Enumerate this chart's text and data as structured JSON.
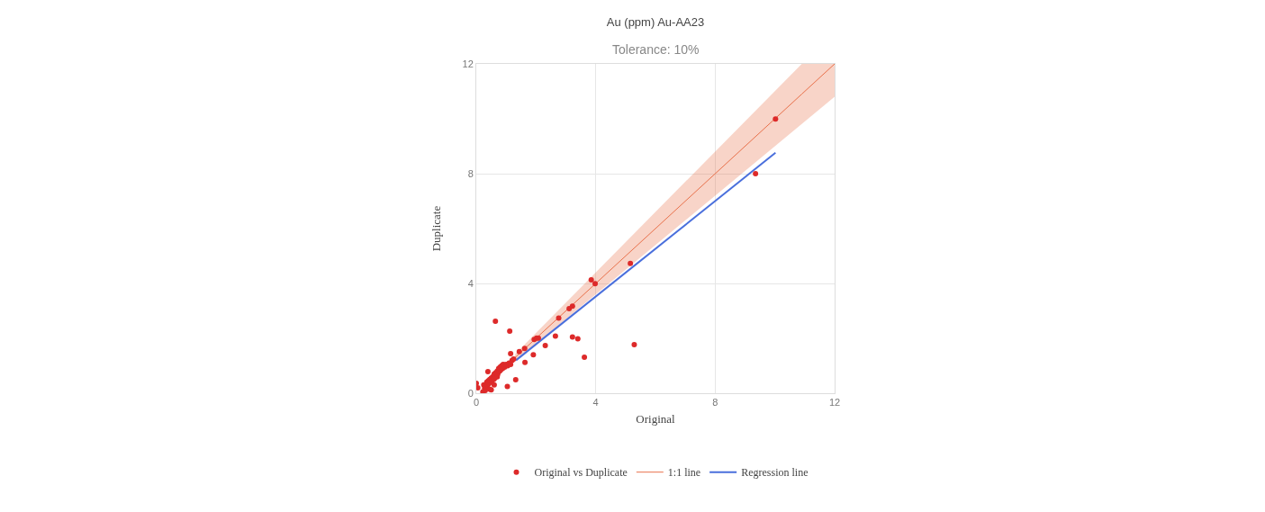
{
  "chart_data": {
    "type": "scatter",
    "title": "Au (ppm) Au-AA23",
    "subtitle": "Tolerance: 10%",
    "xlabel": "Original",
    "ylabel": "Duplicate",
    "xlim": [
      0,
      12
    ],
    "ylim": [
      0,
      12
    ],
    "xticks": [
      0,
      4,
      8,
      12
    ],
    "yticks": [
      0,
      4,
      8,
      12
    ],
    "grid": true,
    "legend": "bottom",
    "series": [
      {
        "name": "1:1 line",
        "type": "line",
        "marker": "none",
        "color": "#e8704a",
        "x": [
          1.3,
          10.9,
          12
        ],
        "values": [
          1.3,
          10.9,
          12
        ],
        "lower": [
          1.17,
          9.81,
          10.8
        ],
        "upper": [
          1.43,
          12,
          12
        ]
      },
      {
        "name": "Regression line",
        "type": "line",
        "marker": "none",
        "color": "#4a6fdc",
        "x": [
          1.33,
          10.02
        ],
        "values": [
          1.2,
          8.76
        ]
      },
      {
        "name": "Original vs Duplicate",
        "type": "scatter",
        "marker": "circle",
        "color": "#dd2a2a",
        "x": [
          10.02,
          9.35,
          5.16,
          5.29,
          3.85,
          3.98,
          3.11,
          3.22,
          2.76,
          2.65,
          3.22,
          3.4,
          3.62,
          2.31,
          1.94,
          2.02,
          2.08,
          1.91,
          1.62,
          1.63,
          1.44,
          1.32,
          1.04,
          0.64,
          1.12,
          1.15,
          0.39,
          0,
          0.5,
          0.22,
          0.25,
          0.28,
          0.32,
          0.35,
          0.38,
          0.4,
          0.42,
          0.45,
          0.48,
          0.5,
          0.52,
          0.55,
          0.58,
          0.6,
          0.62,
          0.65,
          0.7,
          0.72,
          0.75,
          0.78,
          0.8,
          0.82,
          0.85,
          0.88,
          0.9,
          0.95,
          1.0,
          1.05,
          1.1,
          1.15,
          1.2,
          1.25,
          0.3,
          0.6,
          0.45,
          0.7,
          0.05
        ],
        "values": [
          9.99,
          8.0,
          4.73,
          1.77,
          4.13,
          3.99,
          3.08,
          3.17,
          2.74,
          2.08,
          2.05,
          1.98,
          1.31,
          1.74,
          1.96,
          2.01,
          2.01,
          1.4,
          1.63,
          1.12,
          1.52,
          0.49,
          0.25,
          2.62,
          2.26,
          1.44,
          0.79,
          0.36,
          0.12,
          0.05,
          0.3,
          0.18,
          0.22,
          0.4,
          0.3,
          0.45,
          0.35,
          0.5,
          0.4,
          0.55,
          0.45,
          0.6,
          0.5,
          0.7,
          0.55,
          0.75,
          0.8,
          0.7,
          0.9,
          0.8,
          0.95,
          0.85,
          1.0,
          0.9,
          1.05,
          0.95,
          1.05,
          1.0,
          1.1,
          1.05,
          1.2,
          1.25,
          0.1,
          0.3,
          0.15,
          0.6,
          0.2
        ]
      }
    ]
  }
}
